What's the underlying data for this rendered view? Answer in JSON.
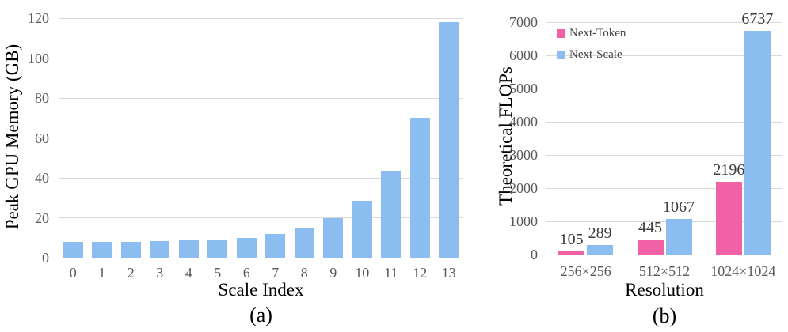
{
  "figure": {
    "caption_a": "(a)",
    "caption_b": "(b)"
  },
  "chart_data": [
    {
      "type": "bar",
      "caption": "(a)",
      "ylabel": "Peak GPU Memory (GB)",
      "xlabel": "Scale Index",
      "ylim": [
        0,
        120
      ],
      "ymax": 120,
      "ystep": 20,
      "grid": true,
      "legend": false,
      "value_labels": false,
      "color": "#8bbdf0",
      "categories": [
        "0",
        "1",
        "2",
        "3",
        "4",
        "5",
        "6",
        "7",
        "8",
        "9",
        "10",
        "11",
        "12",
        "13"
      ],
      "values": [
        7.9,
        8.0,
        8.1,
        8.3,
        8.6,
        9.2,
        10.1,
        11.7,
        14.7,
        20,
        28.5,
        43.5,
        70,
        118
      ]
    },
    {
      "type": "bar",
      "caption": "(b)",
      "ylabel": "Theoretical FLOPs",
      "xlabel": "Resolution",
      "ylim": [
        0,
        7000
      ],
      "ymax": 7000,
      "ystep": 1000,
      "grid": true,
      "legend": true,
      "legend_position": "top-left",
      "value_labels": true,
      "categories": [
        "256×256",
        "512×512",
        "1024×1024"
      ],
      "series": [
        {
          "name": "Next-Token",
          "color": "#f062a5",
          "values": [
            105,
            445,
            2196
          ]
        },
        {
          "name": "Next-Scale",
          "color": "#8bbdf0",
          "values": [
            289,
            1067,
            6737
          ]
        }
      ]
    }
  ]
}
